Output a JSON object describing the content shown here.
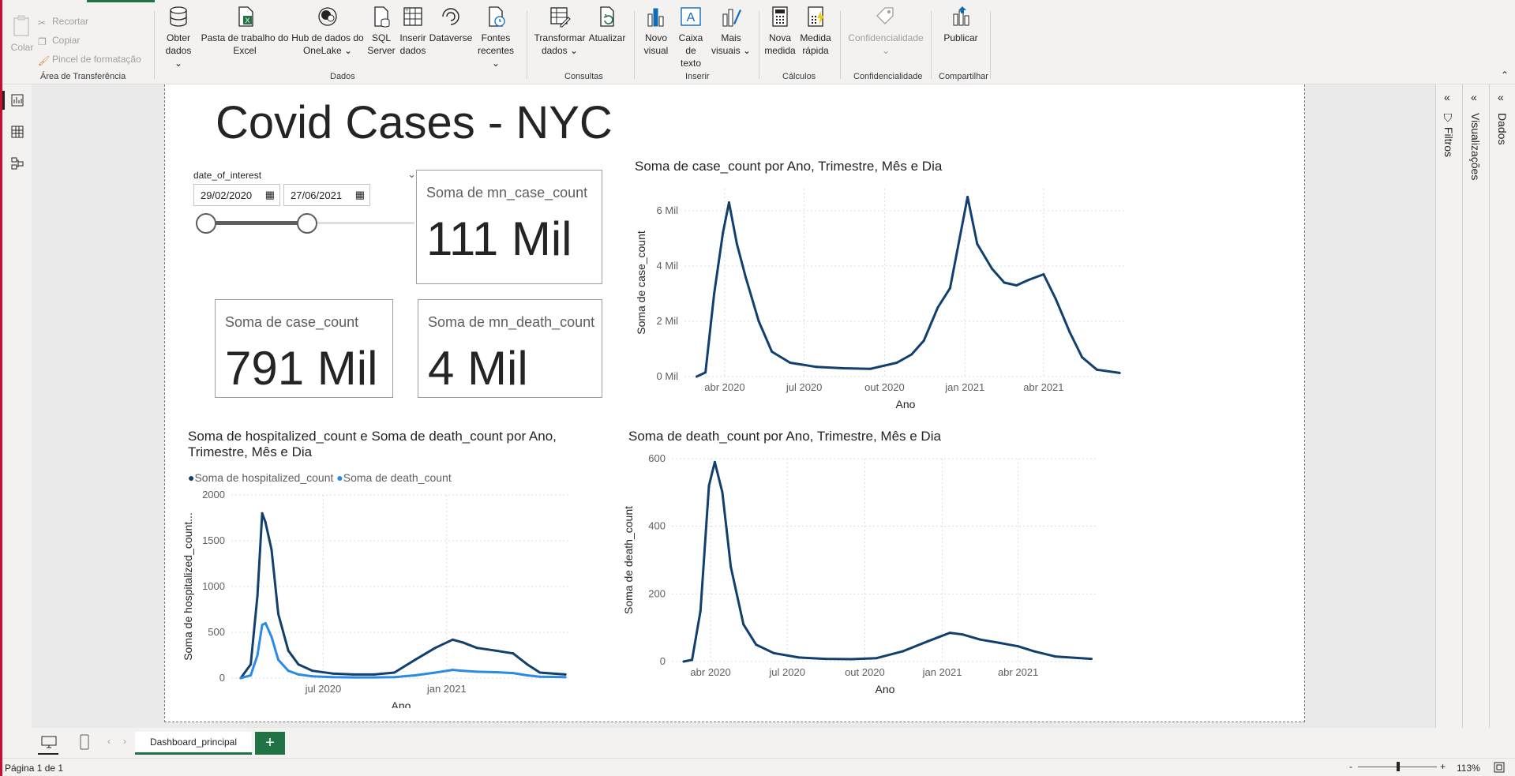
{
  "ribbon": {
    "clipboard": {
      "paste": "Colar",
      "cut": "Recortar",
      "copy": "Copiar",
      "format_painter": "Pincel de formatação",
      "group": "Área de Transferência"
    },
    "data": {
      "get_data": [
        "Obter",
        "dados"
      ],
      "excel": [
        "Pasta de trabalho do",
        "Excel"
      ],
      "onelake": [
        "Hub de dados do",
        "OneLake"
      ],
      "sql": [
        "SQL",
        "Server"
      ],
      "enter_data": [
        "Inserir",
        "dados"
      ],
      "dataverse": "Dataverse",
      "recent": [
        "Fontes",
        "recentes"
      ],
      "group": "Dados"
    },
    "queries": {
      "transform": [
        "Transformar",
        "dados"
      ],
      "refresh": "Atualizar",
      "group": "Consultas"
    },
    "insert": {
      "new_visual": [
        "Novo",
        "visual"
      ],
      "text_box": [
        "Caixa de",
        "texto"
      ],
      "more_visuals": [
        "Mais",
        "visuais"
      ],
      "group": "Inserir"
    },
    "calc": {
      "new_measure": [
        "Nova",
        "medida"
      ],
      "quick_measure": [
        "Medida",
        "rápida"
      ],
      "group": "Cálculos"
    },
    "sensitivity": {
      "label": "Confidencialidade",
      "group": "Confidencialidade"
    },
    "share": {
      "publish": "Publicar",
      "group": "Compartilhar"
    }
  },
  "report": {
    "title": "Covid Cases - NYC",
    "slicer": {
      "field": "date_of_interest",
      "start": "29/02/2020",
      "end": "27/06/2021"
    },
    "cards": [
      {
        "label": "Soma de mn_case_count",
        "value": "111 Mil"
      },
      {
        "label": "Soma de case_count",
        "value": "791 Mil"
      },
      {
        "label": "Soma de mn_death_count",
        "value": "4 Mil"
      }
    ]
  },
  "chart_data": [
    {
      "type": "line",
      "title": "Soma de case_count por Ano, Trimestre, Mês e Dia",
      "xlabel": "Ano",
      "ylabel": "Soma de case_count",
      "x_ticks": [
        "abr 2020",
        "jul 2020",
        "out 2020",
        "jan 2021",
        "abr 2021"
      ],
      "y_ticks": [
        "0 Mil",
        "2 Mil",
        "4 Mil",
        "6 Mil"
      ],
      "ylim": [
        0,
        6800
      ],
      "grid": true,
      "x": [
        "2020-02-29",
        "2020-03-10",
        "2020-03-20",
        "2020-03-30",
        "2020-04-06",
        "2020-04-15",
        "2020-04-25",
        "2020-05-10",
        "2020-05-25",
        "2020-06-15",
        "2020-07-15",
        "2020-08-15",
        "2020-09-15",
        "2020-10-15",
        "2020-11-01",
        "2020-11-15",
        "2020-12-01",
        "2020-12-15",
        "2021-01-04",
        "2021-01-15",
        "2021-02-01",
        "2021-02-15",
        "2021-03-01",
        "2021-03-15",
        "2021-04-01",
        "2021-04-15",
        "2021-05-01",
        "2021-05-15",
        "2021-06-01",
        "2021-06-27"
      ],
      "series": [
        {
          "color": "#123f6e",
          "values": [
            0,
            150,
            3000,
            5200,
            6300,
            4800,
            3600,
            2000,
            900,
            500,
            350,
            300,
            280,
            500,
            800,
            1300,
            2500,
            3200,
            6500,
            4800,
            3900,
            3400,
            3300,
            3500,
            3700,
            2800,
            1600,
            700,
            250,
            130
          ]
        }
      ]
    },
    {
      "type": "line",
      "title": "Soma de hospitalized_count e Soma de death_count por Ano, Trimestre, Mês e Dia",
      "xlabel": "Ano",
      "ylabel": "Soma de hospitalized_count...",
      "x_ticks": [
        "jul 2020",
        "jan 2021"
      ],
      "y_ticks": [
        "0",
        "500",
        "1000",
        "1500",
        "2000"
      ],
      "ylim": [
        0,
        2000
      ],
      "grid": true,
      "legend": "top-left",
      "x": [
        "2020-02-29",
        "2020-03-15",
        "2020-03-25",
        "2020-04-01",
        "2020-04-06",
        "2020-04-15",
        "2020-04-25",
        "2020-05-10",
        "2020-05-25",
        "2020-06-15",
        "2020-07-15",
        "2020-08-15",
        "2020-09-15",
        "2020-10-15",
        "2020-11-15",
        "2020-12-15",
        "2021-01-10",
        "2021-01-25",
        "2021-02-15",
        "2021-03-15",
        "2021-04-10",
        "2021-05-01",
        "2021-05-20",
        "2021-06-27"
      ],
      "series": [
        {
          "name": "Soma de hospitalized_count",
          "color": "#123f6e",
          "values": [
            0,
            150,
            900,
            1800,
            1700,
            1400,
            700,
            300,
            150,
            80,
            50,
            40,
            40,
            60,
            200,
            330,
            420,
            390,
            330,
            300,
            270,
            150,
            60,
            40
          ]
        },
        {
          "name": "Soma de death_count",
          "color": "#2b8ae6",
          "values": [
            0,
            30,
            250,
            580,
            600,
            450,
            200,
            80,
            40,
            20,
            10,
            8,
            8,
            10,
            30,
            60,
            90,
            80,
            70,
            65,
            55,
            30,
            15,
            10
          ]
        }
      ]
    },
    {
      "type": "line",
      "title": "Soma de death_count por Ano, Trimestre, Mês e Dia",
      "xlabel": "Ano",
      "ylabel": "Soma de death_count",
      "x_ticks": [
        "abr 2020",
        "jul 2020",
        "out 2020",
        "jan 2021",
        "abr 2021"
      ],
      "y_ticks": [
        "0",
        "200",
        "400",
        "600"
      ],
      "ylim": [
        0,
        600
      ],
      "grid": true,
      "x": [
        "2020-02-29",
        "2020-03-10",
        "2020-03-20",
        "2020-03-30",
        "2020-04-06",
        "2020-04-15",
        "2020-04-25",
        "2020-05-10",
        "2020-05-25",
        "2020-06-15",
        "2020-07-15",
        "2020-08-15",
        "2020-09-15",
        "2020-10-15",
        "2020-11-15",
        "2020-12-15",
        "2021-01-10",
        "2021-01-25",
        "2021-02-15",
        "2021-03-10",
        "2021-04-01",
        "2021-04-20",
        "2021-05-15",
        "2021-06-27"
      ],
      "series": [
        {
          "color": "#123f6e",
          "values": [
            0,
            5,
            150,
            520,
            590,
            500,
            280,
            110,
            50,
            25,
            12,
            8,
            7,
            10,
            30,
            60,
            85,
            80,
            65,
            55,
            45,
            30,
            15,
            8
          ]
        }
      ]
    }
  ],
  "panes": {
    "filters": "Filtros",
    "visualizations": "Visualizações",
    "data": "Dados"
  },
  "bottom": {
    "page_tab": "Dashboard_principal",
    "add": "+",
    "page_indicator": "Página 1 de 1",
    "zoom": "113%",
    "zoom_minus": "-",
    "zoom_plus": "+"
  }
}
